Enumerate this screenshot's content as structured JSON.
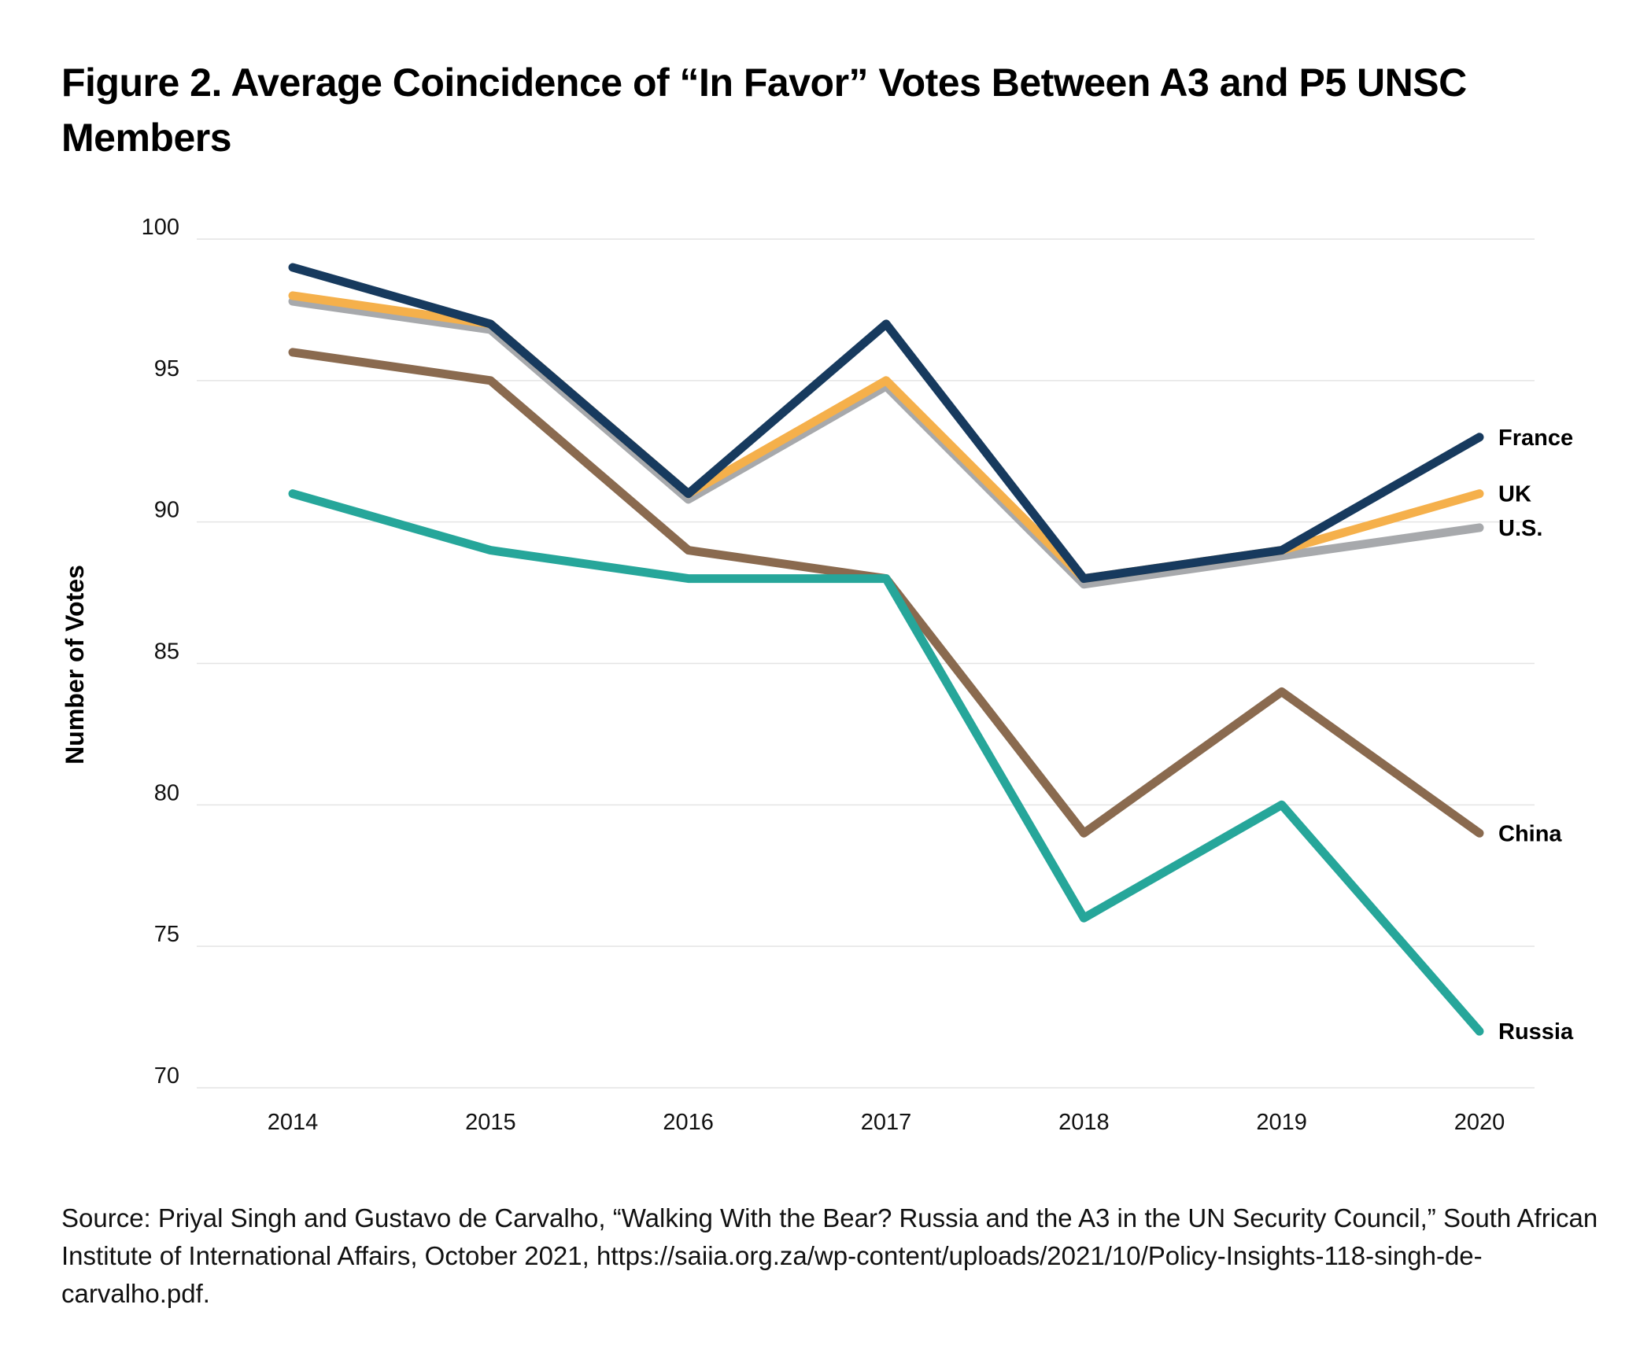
{
  "title": "Figure 2. Average Coincidence of “In Favor” Votes Between A3 and P5 UNSC Members",
  "source": "Source: Priyal Singh and Gustavo de Carvalho, “Walking With the Bear? Russia and the A3 in the UN Security Council,” South African Institute of International Affairs, October 2021, https://saiia.org.za/wp-content/uploads/2021/10/Policy-Insights-118-singh-de-carvalho.pdf.",
  "chart_data": {
    "type": "line",
    "title": "Figure 2. Average Coincidence of “In Favor” Votes Between A3 and P5 UNSC Members",
    "xlabel": "",
    "ylabel": "Number of Votes",
    "x": [
      "2014",
      "2015",
      "2016",
      "2017",
      "2018",
      "2019",
      "2020"
    ],
    "ylim": [
      70,
      100
    ],
    "yticks": [
      70,
      75,
      80,
      85,
      90,
      95,
      100
    ],
    "grid": true,
    "legend": "direct labels at right end of lines",
    "series": [
      {
        "name": "China",
        "color": "#8a6a4f",
        "values": [
          96,
          95,
          89,
          88,
          79,
          84,
          79
        ]
      },
      {
        "name": "Russia",
        "color": "#26a69a",
        "values": [
          91,
          89,
          88,
          88,
          76,
          80,
          72
        ]
      },
      {
        "name": "U.S.",
        "color": "#a7a9ac",
        "values": [
          97.8,
          96.8,
          90.8,
          94.8,
          87.8,
          88.8,
          89.8
        ]
      },
      {
        "name": "UK",
        "color": "#f5b04b",
        "values": [
          98,
          97,
          91,
          95,
          88,
          89,
          91
        ]
      },
      {
        "name": "France",
        "color": "#173a5e",
        "values": [
          99,
          97,
          91,
          97,
          88,
          89,
          93
        ]
      }
    ]
  }
}
